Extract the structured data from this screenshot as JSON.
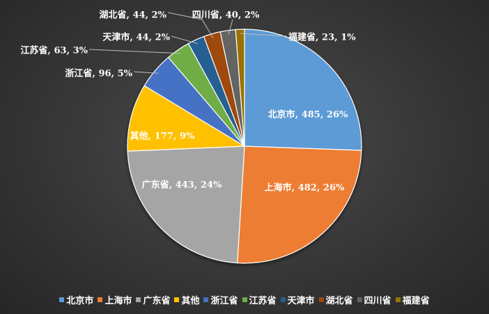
{
  "chart_data": {
    "type": "pie",
    "title": "",
    "legend_position": "bottom",
    "slices": [
      {
        "name": "北京市",
        "value": 485,
        "percent": "26%",
        "color": "#5b9bd5",
        "label": "北京市, 485, 26%"
      },
      {
        "name": "上海市",
        "value": 482,
        "percent": "26%",
        "color": "#ed7d31",
        "label": "上海市, 482, 26%"
      },
      {
        "name": "广东省",
        "value": 443,
        "percent": "24%",
        "color": "#a5a5a5",
        "label": "广东省, 443, 24%"
      },
      {
        "name": "其他",
        "value": 177,
        "percent": "9%",
        "color": "#ffc000",
        "label": "其他, 177, 9%"
      },
      {
        "name": "浙江省",
        "value": 96,
        "percent": "5%",
        "color": "#4472c4",
        "label": "浙江省, 96, 5%"
      },
      {
        "name": "江苏省",
        "value": 63,
        "percent": "3%",
        "color": "#70ad47",
        "label": "江苏省, 63, 3%"
      },
      {
        "name": "天津市",
        "value": 44,
        "percent": "2%",
        "color": "#255e91",
        "label": "天津市, 44, 2%"
      },
      {
        "name": "湖北省",
        "value": 44,
        "percent": "2%",
        "color": "#9e480e",
        "label": "湖北省, 44, 2%"
      },
      {
        "name": "四川省",
        "value": 40,
        "percent": "2%",
        "color": "#636363",
        "label": "四川省, 40, 2%"
      },
      {
        "name": "福建省",
        "value": 23,
        "percent": "1%",
        "color": "#997300",
        "label": "福建省, 23, 1%"
      }
    ]
  }
}
